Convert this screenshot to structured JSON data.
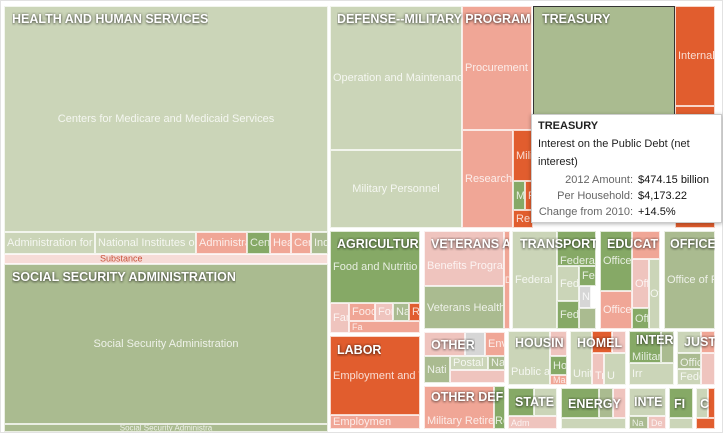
{
  "chart_data": {
    "type": "treemap",
    "color_scale": {
      "increase_large": "#86a966",
      "increase": "#aabb90",
      "neutral": "#cbd5b8",
      "decrease": "#efc4be",
      "decrease_more": "#f0a696",
      "decrease_large": "#e15d2e",
      "no_change": "#d6d6d6"
    },
    "groups": [
      {
        "label": "HEALTH AND HUMAN SERVICES",
        "cells": [
          "Centers for Medicare and Medicaid Services",
          "Administration for",
          "National Institutes o",
          "Administra",
          "Cent",
          "Hea",
          "Cer",
          "Ind",
          "Substance"
        ]
      },
      {
        "label": "SOCIAL SECURITY ADMINISTRATION",
        "cells": [
          "Social Security Administration",
          "Social Security Administra"
        ]
      },
      {
        "label": "DEFENSE--MILITARY PROGRAM",
        "cells": [
          "Operation and Maintenanc",
          "Military Personnel",
          "Procurement",
          "Research",
          "Mili",
          "Mi",
          "F",
          "Re"
        ]
      },
      {
        "label": "TREASURY",
        "cells": [
          "Internal"
        ]
      },
      {
        "label": "AGRICULTUR",
        "cells": [
          "Food and Nutritio",
          "Fan",
          "Food",
          "For",
          "Na",
          "Ri",
          "Fa"
        ]
      },
      {
        "label": "VETERANS A",
        "cells": [
          "Benefits Progra",
          "Veterans Health",
          "D"
        ]
      },
      {
        "label": "TRANSPORT",
        "cells": [
          "Federal I",
          "Federal",
          "Fed",
          "Fec",
          "Na",
          "Fed"
        ]
      },
      {
        "label": "EDUCAT",
        "cells": [
          "Office",
          "Office",
          "Offi",
          "Offi",
          "Ot"
        ]
      },
      {
        "label": "OFFICE",
        "cells": [
          "Office of P"
        ]
      },
      {
        "label": "LABOR",
        "cells": [
          "Employment and T",
          "Employmen"
        ]
      },
      {
        "label": "OTHER",
        "cells": [
          "Nati",
          "Env",
          "Postal S",
          "Na"
        ]
      },
      {
        "label": "OTHER DEF",
        "cells": [
          "Military Retire",
          "Re"
        ]
      },
      {
        "label": "HOUSIN",
        "cells": [
          "Public a",
          "Ho",
          "Ma"
        ]
      },
      {
        "label": "HOMEL",
        "cells": [
          "Unit",
          "Tra",
          "U"
        ]
      },
      {
        "label": "INTER",
        "cells": [
          "Militar",
          "Irr"
        ]
      },
      {
        "label": "JUST",
        "cells": [
          "Offic",
          "Fede"
        ]
      },
      {
        "label": "STATE",
        "cells": [
          "Adm"
        ]
      },
      {
        "label": "ENERGY",
        "cells": []
      },
      {
        "label": "INTE",
        "cells": [
          "Na",
          "De"
        ]
      },
      {
        "label": "FI",
        "cells": []
      },
      {
        "label": "C",
        "cells": []
      }
    ]
  },
  "tooltip": {
    "title": "TREASURY",
    "item": "Interest on the Public Debt (net interest)",
    "rows": [
      {
        "key": "2012 Amount:",
        "value": "$474.15 billion"
      },
      {
        "key": "Per Household:",
        "value": "$4,173.22"
      },
      {
        "key": "Change from 2010:",
        "value": "+14.5%"
      }
    ]
  }
}
